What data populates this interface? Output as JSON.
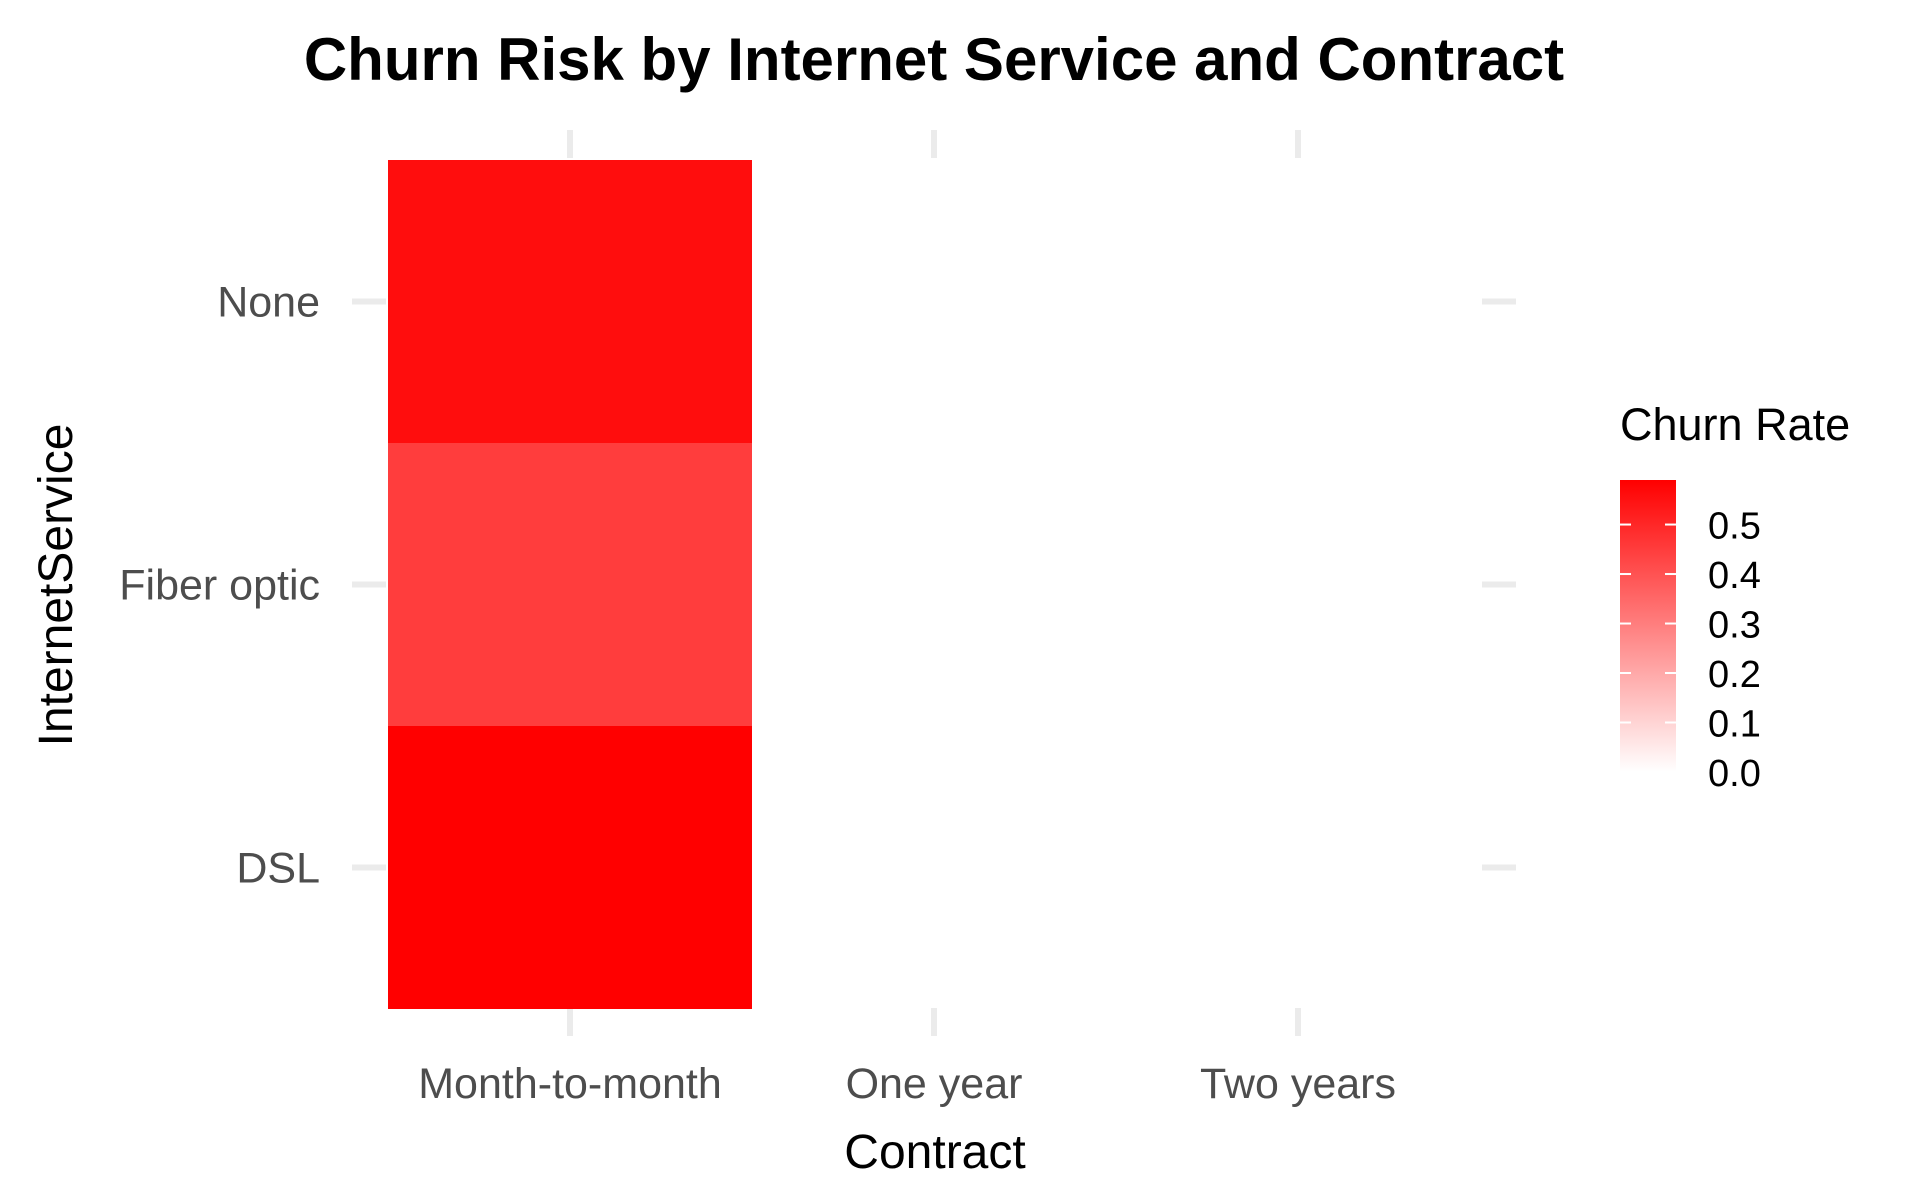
{
  "chart_data": {
    "type": "heatmap",
    "title": "Churn Risk by Internet Service and Contract",
    "xlabel": "Contract",
    "ylabel": "InternetService",
    "x_categories": [
      "Month-to-month",
      "One year",
      "Two years"
    ],
    "y_categories": [
      "DSL",
      "Fiber optic",
      "None"
    ],
    "cells": [
      {
        "x": "Month-to-month",
        "y": "DSL",
        "value": 0.59
      },
      {
        "x": "Month-to-month",
        "y": "Fiber optic",
        "value": 0.45
      },
      {
        "x": "Month-to-month",
        "y": "None",
        "value": 0.56
      }
    ],
    "legend": {
      "title": "Churn Rate",
      "placement": "right",
      "ticks": [
        0.0,
        0.1,
        0.2,
        0.3,
        0.4,
        0.5
      ],
      "tick_labels": [
        "0.0",
        "0.1",
        "0.2",
        "0.3",
        "0.4",
        "0.5"
      ],
      "range": [
        0.0,
        0.59
      ],
      "low_color": "#ffffff",
      "high_color": "#ff0000"
    },
    "grid": true
  }
}
